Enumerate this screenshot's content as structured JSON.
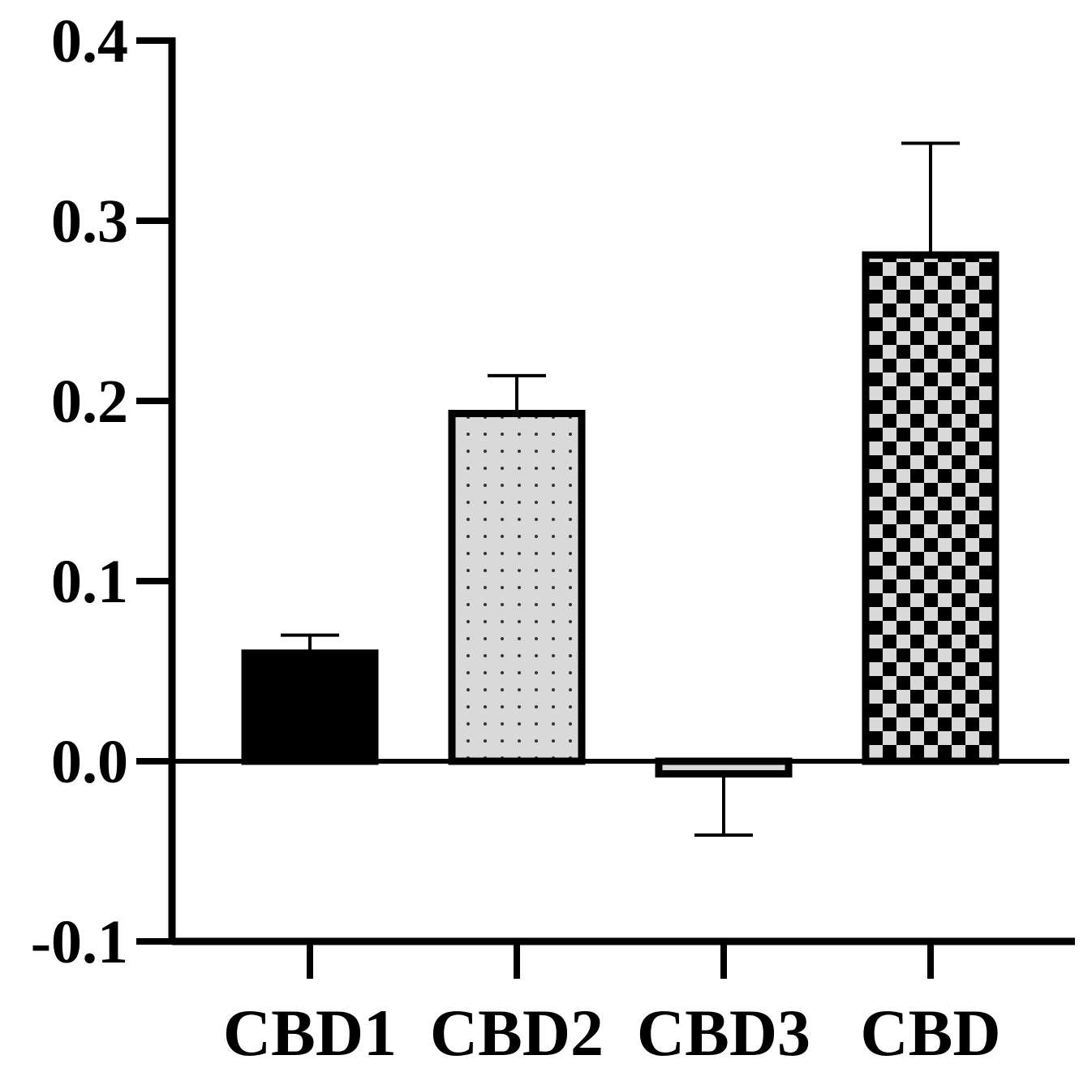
{
  "chart_data": {
    "type": "bar",
    "title": "",
    "xlabel": "",
    "ylabel": "",
    "categories": [
      "CBD1",
      "CBD2",
      "CBD3",
      "CBD"
    ],
    "values": [
      0.06,
      0.193,
      -0.007,
      0.281
    ],
    "errors": [
      0.01,
      0.021,
      0.034,
      0.062
    ],
    "ylim": [
      -0.1,
      0.4
    ],
    "yticks": [
      0.4,
      0.3,
      0.2,
      0.1,
      0.0,
      -0.1
    ],
    "ytick_labels": [
      "0.4",
      "0.3",
      "0.2",
      "0.1",
      "0.0",
      "-0.1"
    ],
    "fills": [
      "solid-black",
      "dots-gray",
      "stripe-gray",
      "checker-gray"
    ],
    "colors": {
      "ink": "#000000",
      "gray": "#d9d9d9"
    },
    "grid": false,
    "legend": "none"
  }
}
